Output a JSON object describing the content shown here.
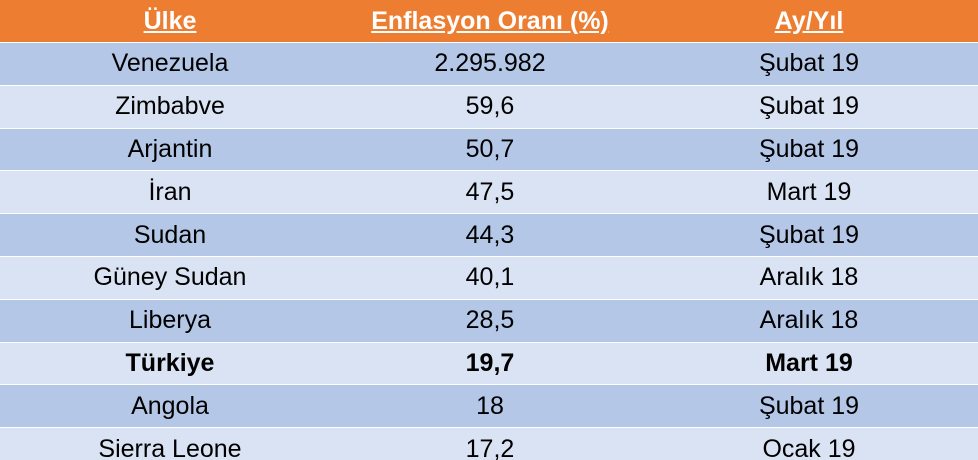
{
  "table": {
    "header": [
      "Ülke",
      "Enflasyon Oranı (%)",
      "Ay/Yıl"
    ],
    "rows": [
      [
        "Venezuela",
        "2.295.982",
        "Şubat 19"
      ],
      [
        "Zimbabve",
        "59,6",
        "Şubat 19"
      ],
      [
        "Arjantin",
        "50,7",
        "Şubat 19"
      ],
      [
        "İran",
        "47,5",
        "Mart 19"
      ],
      [
        "Sudan",
        "44,3",
        "Şubat 19"
      ],
      [
        "Güney Sudan",
        "40,1",
        "Aralık 18"
      ],
      [
        "Liberya",
        "28,5",
        "Aralık 18"
      ],
      [
        "Türkiye",
        "19,7",
        "Mart 19"
      ],
      [
        "Angola",
        "18",
        "Şubat 19"
      ],
      [
        "Sierra Leone",
        "17,2",
        "Ocak 19"
      ]
    ]
  }
}
